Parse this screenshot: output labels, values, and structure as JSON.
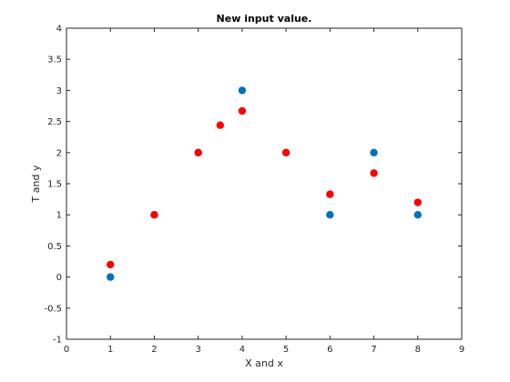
{
  "chart_data": {
    "type": "scatter",
    "title": "New input value.",
    "xlabel": "X and x",
    "ylabel": "T and y",
    "xlim": [
      0,
      9
    ],
    "ylim": [
      -1,
      4
    ],
    "xticks": [
      "0",
      "1",
      "2",
      "3",
      "4",
      "5",
      "6",
      "7",
      "8",
      "9"
    ],
    "yticks": [
      "-1",
      "-0.5",
      "0",
      "0.5",
      "1",
      "1.5",
      "2",
      "2.5",
      "3",
      "3.5",
      "4"
    ],
    "grid": false,
    "series": [
      {
        "color": "#0072bd",
        "x": [
          1,
          2,
          3,
          4,
          5,
          6,
          7,
          8
        ],
        "y": [
          0,
          1,
          2,
          3,
          2,
          1,
          2,
          1
        ]
      },
      {
        "color": "#ff0000",
        "x": [
          1,
          2,
          3,
          3.5,
          4,
          5,
          6,
          7,
          8
        ],
        "y": [
          0.2,
          1,
          2,
          2.44,
          2.67,
          2,
          1.33,
          1.67,
          1.2
        ]
      }
    ]
  }
}
